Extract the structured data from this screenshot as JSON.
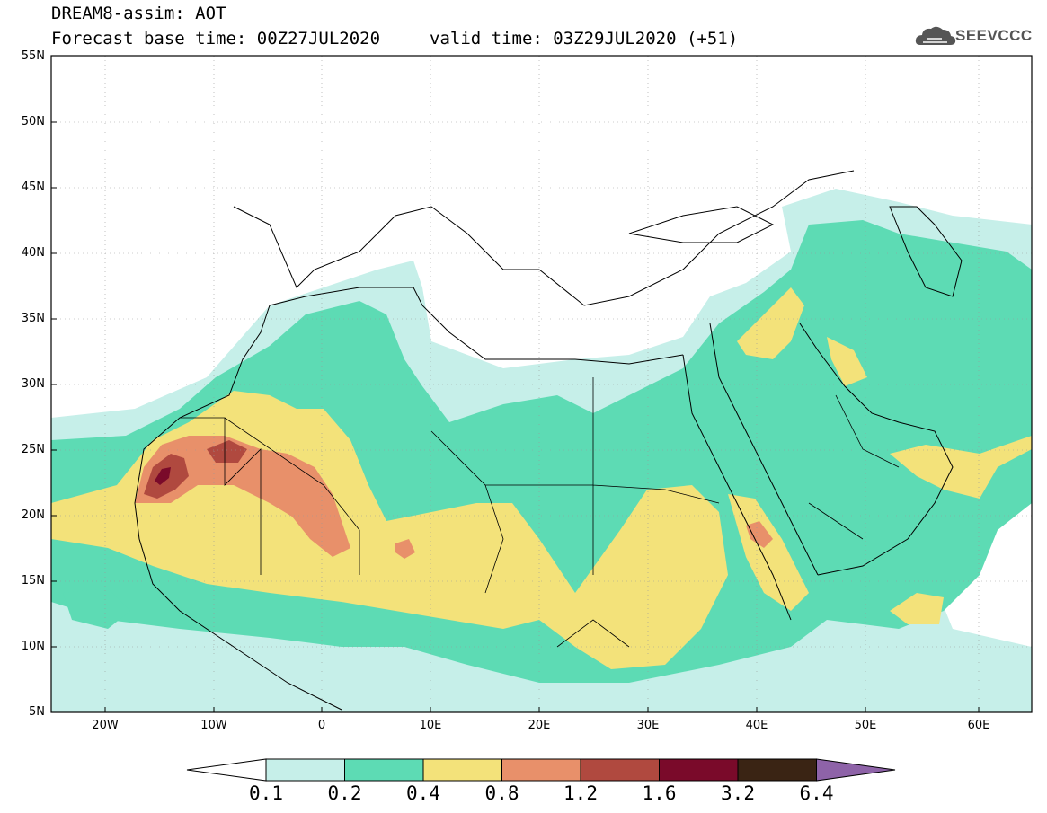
{
  "header": {
    "title": "DREAM8-assim: AOT",
    "base_time": "Forecast base time: 00Z27JUL2020",
    "valid_time": "valid time: 03Z29JUL2020 (+51)",
    "logo_text": "SEEVCCC",
    "logo_icon": "cloud-icon"
  },
  "axes": {
    "lat_labels": [
      "55N",
      "50N",
      "45N",
      "40N",
      "35N",
      "30N",
      "25N",
      "20N",
      "15N",
      "10N",
      "5N"
    ],
    "lon_labels": [
      "20W",
      "10W",
      "0",
      "10E",
      "20E",
      "30E",
      "40E",
      "50E",
      "60E"
    ]
  },
  "legend": {
    "labels": [
      "0.1",
      "0.2",
      "0.4",
      "0.8",
      "1.2",
      "1.6",
      "3.2",
      "6.4"
    ],
    "colors": [
      "#c6efe9",
      "#5ddbb4",
      "#f3e27a",
      "#e8906a",
      "#b0493f",
      "#7a0a2a",
      "#3a2414",
      "#8e63a8"
    ],
    "under_color": "#ffffff"
  },
  "colors": {
    "background": "#ffffff",
    "frame": "#000000",
    "lev1": "#c6efe9",
    "lev2": "#5ddbb4",
    "lev3": "#f3e27a",
    "lev4": "#e8906a",
    "lev5": "#b0493f"
  }
}
